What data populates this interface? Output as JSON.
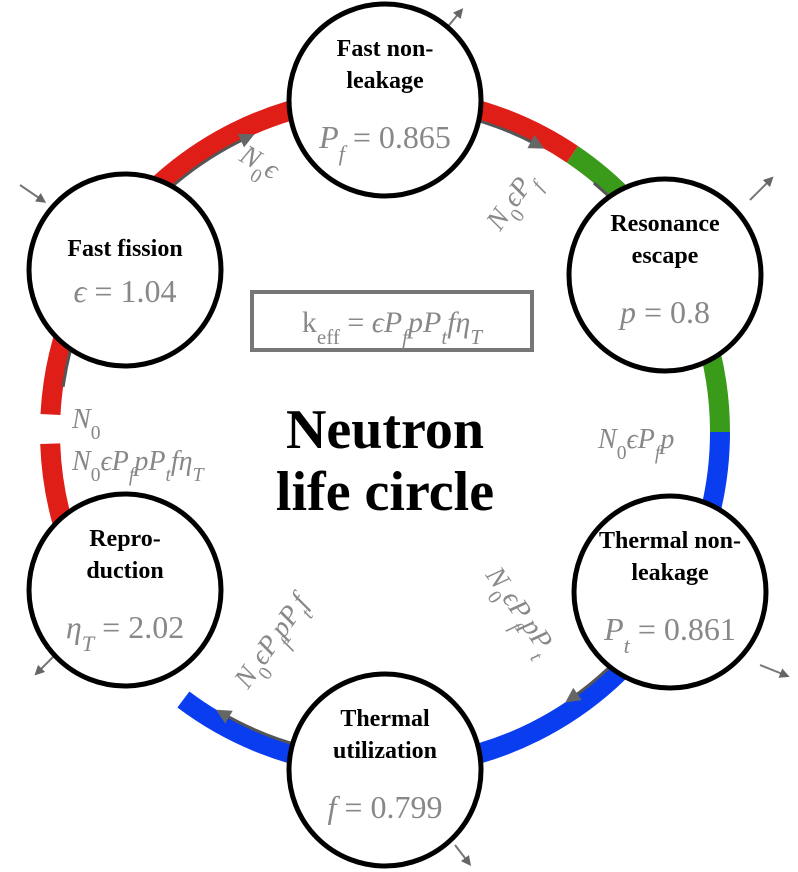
{
  "center_title": [
    "Neutron",
    "life circle"
  ],
  "keff": [
    {
      "t": "k"
    },
    {
      "t": "eff",
      "s": "sub"
    },
    {
      "t": " = "
    },
    {
      "t": "ϵP",
      "s": "i"
    },
    {
      "t": "f",
      "s": "subi"
    },
    {
      "t": "pP",
      "s": "i"
    },
    {
      "t": "t",
      "s": "subi"
    },
    {
      "t": "fη",
      "s": "i"
    },
    {
      "t": "T",
      "s": "subi"
    }
  ],
  "nodes": [
    {
      "title": [
        "Fast non-",
        "leakage"
      ],
      "formula": [
        {
          "t": "P",
          "s": "i"
        },
        {
          "t": "f",
          "s": "subi"
        },
        {
          "t": " = 0.865"
        }
      ]
    },
    {
      "title": [
        "Resonance",
        "escape"
      ],
      "formula": [
        {
          "t": "p",
          "s": "i"
        },
        {
          "t": " = 0.8"
        }
      ]
    },
    {
      "title": [
        "Thermal non-",
        "leakage"
      ],
      "formula": [
        {
          "t": "P",
          "s": "i"
        },
        {
          "t": "t",
          "s": "subi"
        },
        {
          "t": " = 0.861"
        }
      ]
    },
    {
      "title": [
        "Thermal",
        "utilization"
      ],
      "formula": [
        {
          "t": "f",
          "s": "i"
        },
        {
          "t": " = 0.799"
        }
      ]
    },
    {
      "title": [
        "Repro-",
        "duction"
      ],
      "formula": [
        {
          "t": "η",
          "s": "i"
        },
        {
          "t": "T",
          "s": "subi"
        },
        {
          "t": " = 2.02"
        }
      ]
    },
    {
      "title": [
        "Fast fission"
      ],
      "formula": [
        {
          "t": "ϵ",
          "s": "i"
        },
        {
          "t": " = 1.04"
        }
      ]
    }
  ],
  "edges": [
    [
      {
        "t": "N",
        "s": "i"
      },
      {
        "t": "0",
        "s": "sub"
      },
      {
        "t": "ϵ",
        "s": "i"
      }
    ],
    [
      {
        "t": "N",
        "s": "i"
      },
      {
        "t": "0",
        "s": "sub"
      },
      {
        "t": "ϵP",
        "s": "i"
      },
      {
        "t": "f",
        "s": "subi"
      }
    ],
    [
      {
        "t": "N",
        "s": "i"
      },
      {
        "t": "0",
        "s": "sub"
      },
      {
        "t": "ϵP",
        "s": "i"
      },
      {
        "t": "f",
        "s": "subi"
      },
      {
        "t": "p",
        "s": "i"
      }
    ],
    [
      {
        "t": "N",
        "s": "i"
      },
      {
        "t": "0",
        "s": "sub"
      },
      {
        "t": "ϵP",
        "s": "i"
      },
      {
        "t": "f",
        "s": "subi"
      },
      {
        "t": "pP",
        "s": "i"
      },
      {
        "t": "t",
        "s": "subi"
      }
    ],
    [
      {
        "t": "N",
        "s": "i"
      },
      {
        "t": "0",
        "s": "sub"
      },
      {
        "t": "ϵP",
        "s": "i"
      },
      {
        "t": "f",
        "s": "subi"
      },
      {
        "t": "pP",
        "s": "i"
      },
      {
        "t": "t",
        "s": "subi"
      },
      {
        "t": "f",
        "s": "i"
      }
    ],
    [
      {
        "t": "N",
        "s": "i"
      },
      {
        "t": "0",
        "s": "sub"
      }
    ],
    [
      {
        "t": "N",
        "s": "i"
      },
      {
        "t": "0",
        "s": "sub"
      },
      {
        "t": "ϵP",
        "s": "i"
      },
      {
        "t": "f",
        "s": "subi"
      },
      {
        "t": "pP",
        "s": "i"
      },
      {
        "t": "t",
        "s": "subi"
      },
      {
        "t": "fη",
        "s": "i"
      },
      {
        "t": "T",
        "s": "subi"
      }
    ]
  ]
}
